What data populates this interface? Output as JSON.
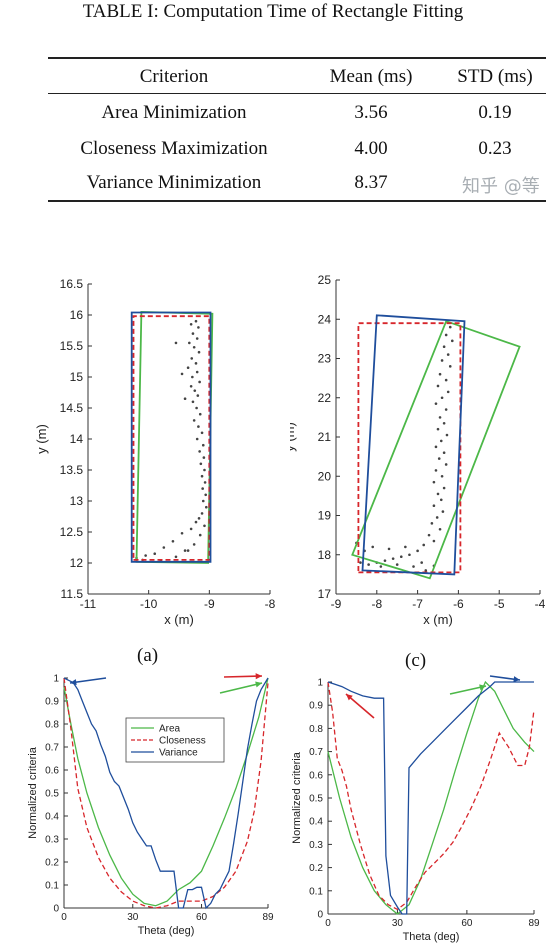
{
  "table": {
    "caption": "TABLE I: Computation Time of Rectangle Fitting",
    "headers": [
      "Criterion",
      "Mean (ms)",
      "STD (ms)"
    ],
    "rows": [
      [
        "Area Minimization",
        "3.56",
        "0.19"
      ],
      [
        "Closeness Maximization",
        "4.00",
        "0.23"
      ],
      [
        "Variance Minimization",
        "8.37",
        ""
      ]
    ],
    "watermark": "知乎 @等"
  },
  "subfig_labels": [
    "(a)",
    "(c)"
  ],
  "colors": {
    "area": "#4cb848",
    "closeness": "#d7262b",
    "variance": "#1f4e9c",
    "points": "#444444"
  },
  "chart_data": [
    {
      "type": "scatter",
      "panel": "(a)",
      "xlabel": "x (m)",
      "ylabel": "y (m)",
      "xlim": [
        -11,
        -8
      ],
      "ylim": [
        11.5,
        16.5
      ],
      "xticks": [
        "-11",
        "-10",
        "-9",
        "-8"
      ],
      "yticks": [
        "11.5",
        "12",
        "12.5",
        "13",
        "13.5",
        "14",
        "14.5",
        "15",
        "15.5",
        "16",
        "16.5"
      ],
      "points": [
        [
          -9.22,
          15.9
        ],
        [
          -9.3,
          15.85
        ],
        [
          -9.18,
          15.8
        ],
        [
          -9.27,
          15.7
        ],
        [
          -9.2,
          15.62
        ],
        [
          -9.33,
          15.55
        ],
        [
          -9.25,
          15.48
        ],
        [
          -9.17,
          15.4
        ],
        [
          -9.29,
          15.3
        ],
        [
          -9.22,
          15.22
        ],
        [
          -9.35,
          15.15
        ],
        [
          -9.2,
          15.08
        ],
        [
          -9.28,
          15.0
        ],
        [
          -9.16,
          14.92
        ],
        [
          -9.3,
          14.85
        ],
        [
          -9.24,
          14.78
        ],
        [
          -9.19,
          14.7
        ],
        [
          -9.27,
          14.6
        ],
        [
          -9.21,
          14.5
        ],
        [
          -9.15,
          14.4
        ],
        [
          -9.25,
          14.3
        ],
        [
          -9.18,
          14.2
        ],
        [
          -9.12,
          14.1
        ],
        [
          -9.2,
          14.0
        ],
        [
          -9.1,
          13.9
        ],
        [
          -9.16,
          13.8
        ],
        [
          -9.09,
          13.7
        ],
        [
          -9.14,
          13.6
        ],
        [
          -9.08,
          13.5
        ],
        [
          -9.12,
          13.4
        ],
        [
          -9.07,
          13.3
        ],
        [
          -9.11,
          13.2
        ],
        [
          -9.06,
          13.1
        ],
        [
          -9.1,
          13.0
        ],
        [
          -9.05,
          12.9
        ],
        [
          -9.12,
          12.8
        ],
        [
          -9.17,
          12.72
        ],
        [
          -9.22,
          12.66
        ],
        [
          -9.08,
          12.6
        ],
        [
          -9.3,
          12.55
        ],
        [
          -9.45,
          12.48
        ],
        [
          -9.15,
          12.45
        ],
        [
          -9.6,
          12.35
        ],
        [
          -9.25,
          12.3
        ],
        [
          -9.75,
          12.25
        ],
        [
          -9.4,
          12.2
        ],
        [
          -9.9,
          12.15
        ],
        [
          -10.05,
          12.12
        ],
        [
          -9.55,
          12.1
        ],
        [
          -10.2,
          12.08
        ],
        [
          -10.1,
          12.05
        ],
        [
          -9.8,
          12.04
        ],
        [
          -9.35,
          12.2
        ],
        [
          -9.55,
          15.55
        ],
        [
          -9.45,
          15.05
        ],
        [
          -9.4,
          14.65
        ]
      ],
      "rectangles": [
        {
          "name": "Area",
          "corners": [
            [
              -10.2,
              12.02
            ],
            [
              -9.02,
              12.0
            ],
            [
              -8.95,
              16.02
            ],
            [
              -10.12,
              16.05
            ]
          ]
        },
        {
          "name": "Closeness",
          "corners": [
            [
              -10.25,
              12.05
            ],
            [
              -9.0,
              12.05
            ],
            [
              -9.0,
              15.98
            ],
            [
              -10.25,
              15.98
            ]
          ]
        },
        {
          "name": "Variance",
          "corners": [
            [
              -10.28,
              12.02
            ],
            [
              -8.98,
              12.02
            ],
            [
              -8.98,
              16.04
            ],
            [
              -10.28,
              16.04
            ]
          ]
        }
      ]
    },
    {
      "type": "scatter",
      "panel": "(c)",
      "xlabel": "x (m)",
      "ylabel": "y (m)",
      "xlim": [
        -9,
        -4
      ],
      "ylim": [
        17,
        25
      ],
      "xticks": [
        "-9",
        "-8",
        "-7",
        "-6",
        "-5",
        "-4"
      ],
      "yticks": [
        "17",
        "18",
        "19",
        "20",
        "21",
        "22",
        "23",
        "24",
        "25"
      ],
      "points": [
        [
          -6.2,
          23.8
        ],
        [
          -6.3,
          23.6
        ],
        [
          -6.15,
          23.45
        ],
        [
          -6.35,
          23.3
        ],
        [
          -6.25,
          23.1
        ],
        [
          -6.4,
          22.95
        ],
        [
          -6.2,
          22.8
        ],
        [
          -6.45,
          22.6
        ],
        [
          -6.3,
          22.45
        ],
        [
          -6.5,
          22.3
        ],
        [
          -6.25,
          22.15
        ],
        [
          -6.4,
          22.0
        ],
        [
          -6.55,
          21.85
        ],
        [
          -6.3,
          21.7
        ],
        [
          -6.45,
          21.5
        ],
        [
          -6.35,
          21.35
        ],
        [
          -6.5,
          21.2
        ],
        [
          -6.28,
          21.05
        ],
        [
          -6.42,
          20.9
        ],
        [
          -6.55,
          20.75
        ],
        [
          -6.35,
          20.6
        ],
        [
          -6.47,
          20.45
        ],
        [
          -6.3,
          20.3
        ],
        [
          -6.55,
          20.15
        ],
        [
          -6.4,
          20.0
        ],
        [
          -6.6,
          19.85
        ],
        [
          -6.35,
          19.7
        ],
        [
          -6.5,
          19.55
        ],
        [
          -6.42,
          19.4
        ],
        [
          -6.6,
          19.25
        ],
        [
          -6.38,
          19.1
        ],
        [
          -6.52,
          18.95
        ],
        [
          -6.65,
          18.8
        ],
        [
          -6.45,
          18.65
        ],
        [
          -6.72,
          18.5
        ],
        [
          -6.6,
          18.35
        ],
        [
          -6.85,
          18.25
        ],
        [
          -7.0,
          18.1
        ],
        [
          -7.2,
          18.0
        ],
        [
          -7.4,
          17.95
        ],
        [
          -7.6,
          17.9
        ],
        [
          -7.8,
          17.85
        ],
        [
          -8.0,
          17.8
        ],
        [
          -8.2,
          17.75
        ],
        [
          -8.4,
          17.8
        ],
        [
          -7.1,
          17.7
        ],
        [
          -7.5,
          17.75
        ],
        [
          -7.9,
          17.7
        ],
        [
          -8.3,
          18.1
        ],
        [
          -8.1,
          18.2
        ],
        [
          -7.7,
          18.15
        ],
        [
          -7.3,
          18.2
        ],
        [
          -8.5,
          18.3
        ],
        [
          -6.9,
          17.8
        ],
        [
          -6.8,
          17.6
        ],
        [
          -6.6,
          17.72
        ]
      ],
      "rectangles": [
        {
          "name": "Area",
          "corners": [
            [
              -8.6,
              18.0
            ],
            [
              -6.7,
              17.4
            ],
            [
              -4.5,
              23.3
            ],
            [
              -6.3,
              23.95
            ]
          ]
        },
        {
          "name": "Closeness",
          "corners": [
            [
              -8.45,
              17.55
            ],
            [
              -5.95,
              17.55
            ],
            [
              -5.95,
              23.9
            ],
            [
              -8.45,
              23.9
            ]
          ]
        },
        {
          "name": "Variance",
          "corners": [
            [
              -8.35,
              17.6
            ],
            [
              -6.1,
              17.5
            ],
            [
              -5.85,
              23.95
            ],
            [
              -8.0,
              24.1
            ]
          ]
        }
      ]
    },
    {
      "type": "line",
      "panel": "(a)",
      "xlabel": "Theta (deg)",
      "ylabel": "Normalized criteria",
      "xlim": [
        0,
        89
      ],
      "ylim": [
        0,
        1
      ],
      "xticks": [
        "0",
        "30",
        "60",
        "89"
      ],
      "yticks": [
        "0",
        "0.1",
        "0.2",
        "0.3",
        "0.4",
        "0.5",
        "0.6",
        "0.7",
        "0.8",
        "0.9",
        "1"
      ],
      "legend": [
        "Area",
        "Closeness",
        "Variance"
      ],
      "legend_position": "center",
      "series": [
        {
          "name": "Area",
          "x": [
            0,
            3,
            6,
            10,
            15,
            20,
            25,
            30,
            35,
            40,
            45,
            50,
            55,
            60,
            65,
            70,
            75,
            80,
            85,
            89
          ],
          "y": [
            0.96,
            0.8,
            0.65,
            0.5,
            0.35,
            0.23,
            0.13,
            0.06,
            0.02,
            0.01,
            0.03,
            0.08,
            0.11,
            0.16,
            0.27,
            0.39,
            0.52,
            0.67,
            0.83,
            1.0
          ]
        },
        {
          "name": "Closeness",
          "x": [
            0,
            3,
            6,
            10,
            15,
            20,
            25,
            30,
            35,
            40,
            45,
            50,
            55,
            60,
            65,
            70,
            75,
            80,
            83,
            86,
            89
          ],
          "y": [
            1.0,
            0.78,
            0.52,
            0.35,
            0.22,
            0.13,
            0.07,
            0.03,
            0.01,
            0.0,
            0.01,
            0.03,
            0.03,
            0.03,
            0.05,
            0.09,
            0.16,
            0.29,
            0.42,
            0.64,
            0.98
          ]
        },
        {
          "name": "Variance",
          "x": [
            0,
            2,
            4,
            6,
            8,
            10,
            12,
            14,
            16,
            18,
            20,
            22,
            24,
            26,
            28,
            30,
            32,
            34,
            36,
            38,
            40,
            42,
            44,
            46,
            48,
            50,
            52,
            54,
            56,
            58,
            60,
            62,
            64,
            66,
            68,
            70,
            72,
            74,
            76,
            78,
            80,
            82,
            84,
            86,
            89
          ],
          "y": [
            1.0,
            0.99,
            0.98,
            0.95,
            0.9,
            0.85,
            0.8,
            0.77,
            0.71,
            0.66,
            0.59,
            0.55,
            0.53,
            0.48,
            0.43,
            0.37,
            0.33,
            0.3,
            0.27,
            0.27,
            0.21,
            0.16,
            0.16,
            0.16,
            0.16,
            0.0,
            0.0,
            0.08,
            0.08,
            0.09,
            0.09,
            0.0,
            0.02,
            0.06,
            0.08,
            0.12,
            0.16,
            0.28,
            0.41,
            0.55,
            0.69,
            0.8,
            0.9,
            0.95,
            1.0
          ]
        }
      ]
    },
    {
      "type": "line",
      "panel": "(c)",
      "xlabel": "Theta (deg)",
      "ylabel": "Normalized criteria",
      "xlim": [
        0,
        89
      ],
      "ylim": [
        0,
        1
      ],
      "xticks": [
        "0",
        "30",
        "60",
        "89"
      ],
      "yticks": [
        "0",
        "0.1",
        "0.2",
        "0.3",
        "0.4",
        "0.5",
        "0.6",
        "0.7",
        "0.8",
        "0.9",
        "1"
      ],
      "series": [
        {
          "name": "Area",
          "x": [
            0,
            5,
            10,
            15,
            20,
            25,
            30,
            35,
            40,
            45,
            50,
            55,
            60,
            65,
            68,
            72,
            76,
            80,
            85,
            89
          ],
          "y": [
            0.7,
            0.5,
            0.33,
            0.2,
            0.1,
            0.04,
            0.0,
            0.04,
            0.15,
            0.3,
            0.45,
            0.62,
            0.78,
            0.93,
            1.0,
            0.96,
            0.88,
            0.8,
            0.74,
            0.7
          ]
        },
        {
          "name": "Closeness",
          "x": [
            0,
            2,
            4,
            6,
            8,
            10,
            14,
            18,
            22,
            26,
            30,
            34,
            38,
            42,
            46,
            50,
            54,
            58,
            62,
            66,
            70,
            74,
            78,
            82,
            85,
            87,
            89
          ],
          "y": [
            1.0,
            0.87,
            0.67,
            0.62,
            0.55,
            0.45,
            0.3,
            0.17,
            0.08,
            0.04,
            0.02,
            0.05,
            0.12,
            0.18,
            0.22,
            0.26,
            0.31,
            0.38,
            0.46,
            0.55,
            0.66,
            0.78,
            0.72,
            0.64,
            0.64,
            0.72,
            0.88
          ]
        },
        {
          "name": "Variance",
          "x": [
            0,
            3,
            6,
            10,
            15,
            20,
            24,
            25,
            27,
            30,
            32,
            34,
            35,
            40,
            45,
            50,
            55,
            60,
            65,
            70,
            72,
            75,
            80,
            85,
            89
          ],
          "y": [
            1.0,
            0.99,
            0.98,
            0.96,
            0.94,
            0.93,
            0.93,
            0.25,
            0.08,
            0.03,
            0.0,
            0.0,
            0.63,
            0.69,
            0.74,
            0.79,
            0.84,
            0.89,
            0.94,
            0.98,
            1.0,
            1.0,
            1.0,
            1.0,
            1.0
          ]
        }
      ]
    }
  ]
}
